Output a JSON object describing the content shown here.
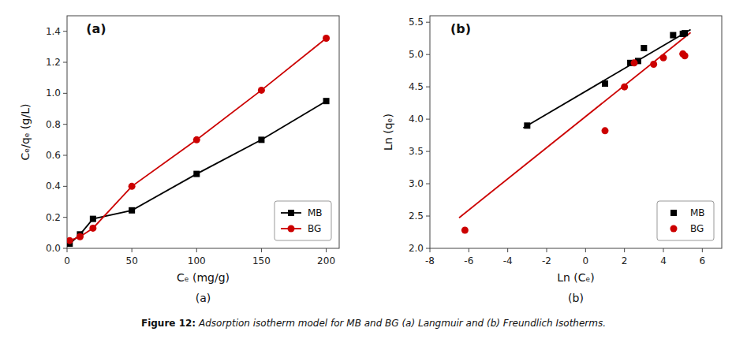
{
  "chart_data": [
    {
      "type": "line",
      "title": "(a)",
      "x_label": "Cₑ (mg/g)",
      "y_label": "Cₑ/qₑ (g/L)",
      "x": [
        2,
        10,
        20,
        50,
        100,
        150,
        200
      ],
      "xlim": [
        0,
        210
      ],
      "ylim": [
        0,
        1.5
      ],
      "xticks": [
        0,
        50,
        100,
        150,
        200
      ],
      "yticks": [
        {
          "value": 0.0,
          "label": "0.0"
        },
        0.2,
        0.4,
        0.6,
        0.8,
        {
          "value": 1.0,
          "label": "1.0"
        },
        1.2,
        1.4
      ],
      "grid": false,
      "legend": "lower right",
      "series": [
        {
          "name": "MB",
          "color": "#000000",
          "marker": "square",
          "values": [
            0.03,
            0.09,
            0.19,
            0.245,
            0.48,
            0.7,
            0.95
          ]
        },
        {
          "name": "BG",
          "color": "#cc0000",
          "marker": "circle",
          "values": [
            0.05,
            0.075,
            0.13,
            0.4,
            0.7,
            1.02,
            1.355
          ]
        }
      ]
    },
    {
      "type": "scatter",
      "title": "(b)",
      "x_label": "Ln (Cₑ)",
      "y_label": "Ln (qₑ)",
      "xlim": [
        -8,
        7
      ],
      "ylim": [
        2.0,
        5.6
      ],
      "xticks": [
        -8,
        -6,
        -4,
        -2,
        0,
        2,
        4,
        6
      ],
      "yticks": [
        {
          "value": 2.0,
          "label": "2.0"
        },
        2.5,
        {
          "value": 3.0,
          "label": "3.0"
        },
        3.5,
        {
          "value": 4.0,
          "label": "4.0"
        },
        4.5,
        {
          "value": 5.0,
          "label": "5.0"
        },
        5.5
      ],
      "grid": false,
      "legend": "lower right",
      "series": [
        {
          "type": "line",
          "color": "#000000",
          "marker": "none",
          "x": [
            -3.2,
            5.4
          ],
          "values": [
            3.8636,
            5.3858
          ]
        },
        {
          "type": "line",
          "color": "#cc0000",
          "marker": "none",
          "x": [
            -6.5,
            5.4
          ],
          "values": [
            2.4735,
            5.3414
          ]
        },
        {
          "name": "MB",
          "type": "scatter",
          "color": "#000000",
          "marker": "square",
          "x": [
            -3.0,
            1.0,
            2.3,
            2.7,
            3.0,
            4.5,
            5.0,
            5.1
          ],
          "values": [
            3.9,
            4.55,
            4.87,
            4.9,
            5.1,
            5.3,
            5.32,
            5.33
          ]
        },
        {
          "name": "BG",
          "type": "scatter",
          "color": "#cc0000",
          "marker": "circle",
          "x": [
            -6.2,
            1.0,
            2.0,
            2.5,
            3.5,
            4.0,
            5.0,
            5.1
          ],
          "values": [
            2.28,
            3.82,
            4.5,
            4.87,
            4.85,
            4.95,
            5.01,
            4.98
          ]
        }
      ]
    }
  ],
  "caption": [
    "Figure 12:",
    " Adsorption isotherm model for MB and BG (a) Langmuir and (b) Freundlich Isotherms."
  ]
}
